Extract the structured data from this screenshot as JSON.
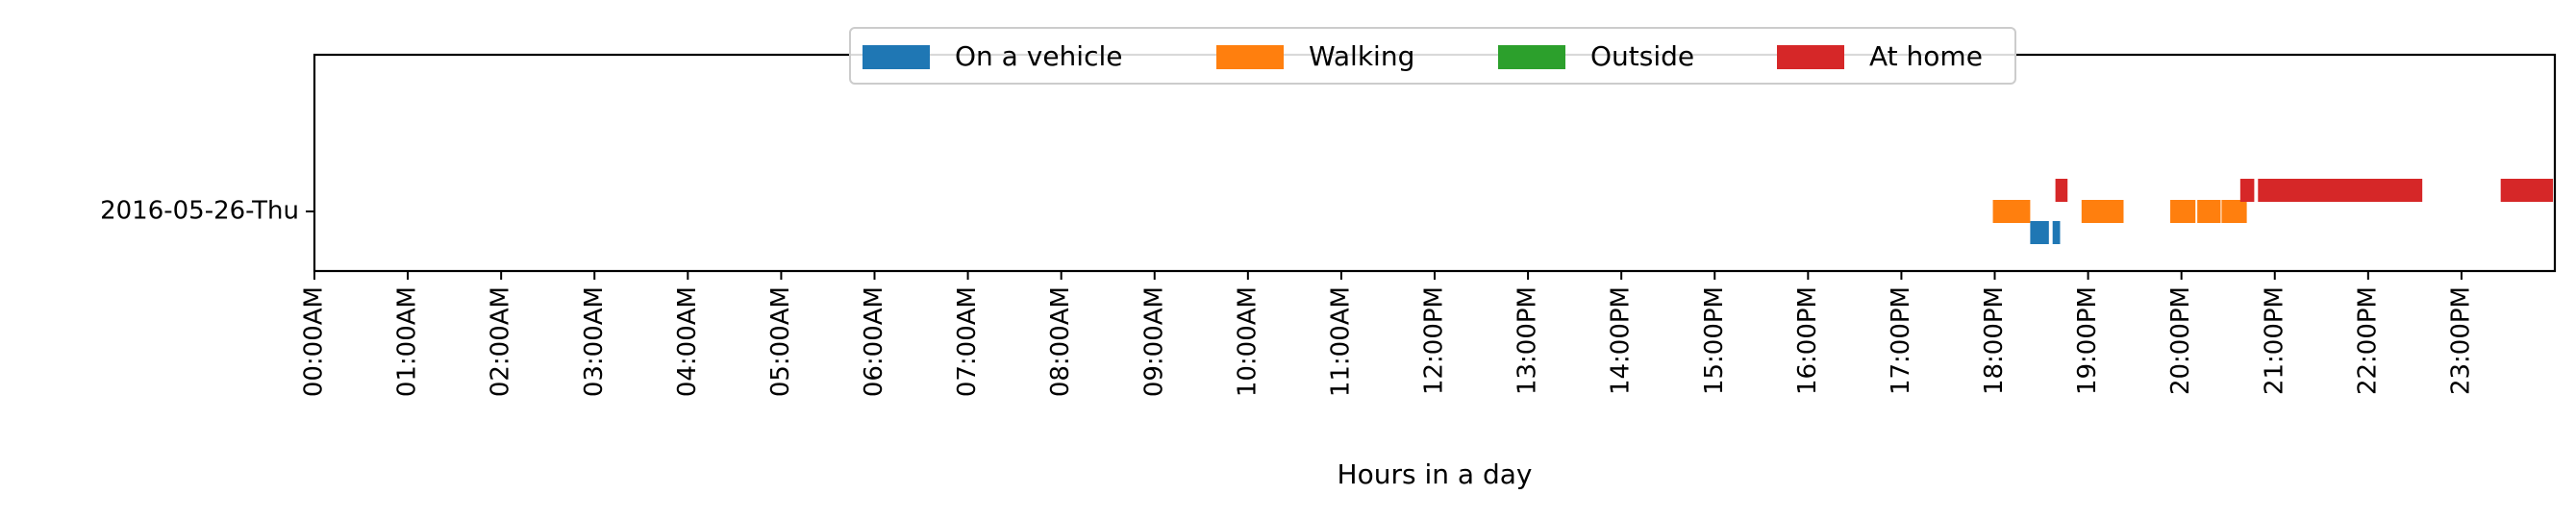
{
  "chart_data": {
    "type": "timeline",
    "title": "",
    "xlabel": "Hours in a day",
    "ylabel": "",
    "xlim": [
      0,
      24
    ],
    "x_ticks": [
      {
        "hour": 0,
        "label": "00:00AM"
      },
      {
        "hour": 1,
        "label": "01:00AM"
      },
      {
        "hour": 2,
        "label": "02:00AM"
      },
      {
        "hour": 3,
        "label": "03:00AM"
      },
      {
        "hour": 4,
        "label": "04:00AM"
      },
      {
        "hour": 5,
        "label": "05:00AM"
      },
      {
        "hour": 6,
        "label": "06:00AM"
      },
      {
        "hour": 7,
        "label": "07:00AM"
      },
      {
        "hour": 8,
        "label": "08:00AM"
      },
      {
        "hour": 9,
        "label": "09:00AM"
      },
      {
        "hour": 10,
        "label": "10:00AM"
      },
      {
        "hour": 11,
        "label": "11:00AM"
      },
      {
        "hour": 12,
        "label": "12:00PM"
      },
      {
        "hour": 13,
        "label": "13:00PM"
      },
      {
        "hour": 14,
        "label": "14:00PM"
      },
      {
        "hour": 15,
        "label": "15:00PM"
      },
      {
        "hour": 16,
        "label": "16:00PM"
      },
      {
        "hour": 17,
        "label": "17:00PM"
      },
      {
        "hour": 18,
        "label": "18:00PM"
      },
      {
        "hour": 19,
        "label": "19:00PM"
      },
      {
        "hour": 20,
        "label": "20:00PM"
      },
      {
        "hour": 21,
        "label": "21:00PM"
      },
      {
        "hour": 22,
        "label": "22:00PM"
      },
      {
        "hour": 23,
        "label": "23:00PM"
      }
    ],
    "categories": [
      "2016-05-26-Thu"
    ],
    "legend_position": "top-center",
    "grid": false,
    "series": [
      {
        "name": "On a vehicle",
        "color": "#1f77b4",
        "intervals": [
          [
            18.38,
            18.58
          ],
          [
            18.62,
            18.7
          ]
        ]
      },
      {
        "name": "Walking",
        "color": "#ff7f0e",
        "intervals": [
          [
            17.98,
            18.38
          ],
          [
            18.93,
            19.38
          ],
          [
            19.88,
            20.15
          ],
          [
            20.17,
            20.42
          ],
          [
            20.43,
            20.7
          ]
        ]
      },
      {
        "name": "Outside",
        "color": "#2ca02c",
        "intervals": []
      },
      {
        "name": "At home",
        "color": "#d62728",
        "intervals": [
          [
            18.65,
            18.78
          ],
          [
            20.63,
            20.78
          ],
          [
            20.82,
            22.58
          ],
          [
            23.42,
            23.98
          ]
        ]
      }
    ]
  }
}
